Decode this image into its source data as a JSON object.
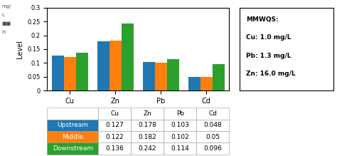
{
  "chart_data": {
    "type": "bar",
    "categories": [
      "Cu",
      "Zn",
      "Pb",
      "Cd"
    ],
    "series": [
      {
        "name": "Upstream",
        "values": [
          0.127,
          0.178,
          0.103,
          0.048
        ]
      },
      {
        "name": "Middle",
        "values": [
          0.122,
          0.182,
          0.102,
          0.05
        ]
      },
      {
        "name": "Downstream",
        "values": [
          0.136,
          0.242,
          0.114,
          0.096
        ]
      }
    ],
    "ylim": [
      0,
      0.3
    ],
    "yticks": [
      0,
      0.05,
      0.1,
      0.15,
      0.2,
      0.25,
      0.3
    ],
    "ylabel": "Level",
    "data_labels": true,
    "annotations": [
      [
        "mg/",
        "L",
        "■■",
        "ln"
      ],
      [
        "MMWQS:",
        "Cu: 1.0 mg/L",
        "Pb: 1.3 mg/L",
        "Zn: 16.0 mg/L"
      ]
    ]
  }
}
